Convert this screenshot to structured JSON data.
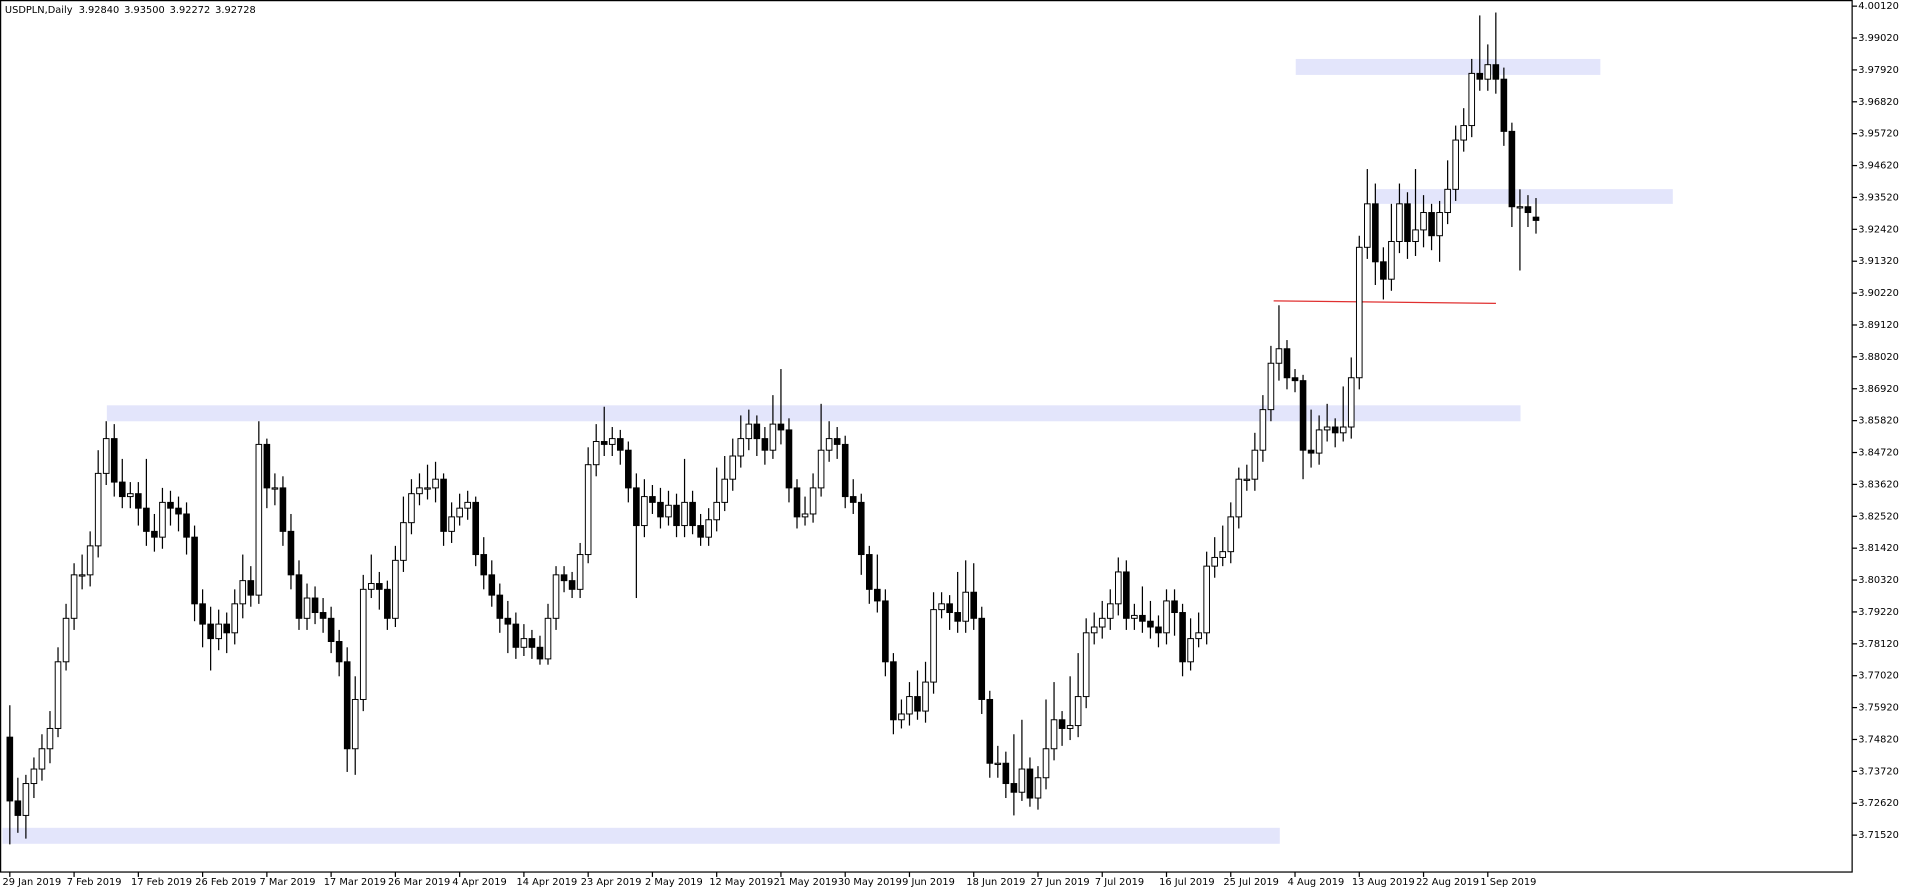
{
  "chart_data": {
    "type": "candlestick",
    "title": "USDPLN,Daily",
    "header_values": [
      "3.92840",
      "3.93500",
      "3.92272",
      "3.92728"
    ],
    "ylim": [
      3.70247,
      4.00332
    ],
    "yticks": [
      {
        "value": 4.0012,
        "label": "4.00120"
      },
      {
        "value": 3.9902,
        "label": "3.99020"
      },
      {
        "value": 3.9792,
        "label": "3.97920"
      },
      {
        "value": 3.9682,
        "label": "3.96820"
      },
      {
        "value": 3.9572,
        "label": "3.95720"
      },
      {
        "value": 3.9462,
        "label": "3.94620"
      },
      {
        "value": 3.9352,
        "label": "3.93520"
      },
      {
        "value": 3.9242,
        "label": "3.92420"
      },
      {
        "value": 3.9132,
        "label": "3.91320"
      },
      {
        "value": 3.9022,
        "label": "3.90220"
      },
      {
        "value": 3.8912,
        "label": "3.89120"
      },
      {
        "value": 3.8802,
        "label": "3.88020"
      },
      {
        "value": 3.8692,
        "label": "3.86920"
      },
      {
        "value": 3.8582,
        "label": "3.85820"
      },
      {
        "value": 3.8472,
        "label": "3.84720"
      },
      {
        "value": 3.8362,
        "label": "3.83620"
      },
      {
        "value": 3.8252,
        "label": "3.82520"
      },
      {
        "value": 3.8142,
        "label": "3.81420"
      },
      {
        "value": 3.8032,
        "label": "3.80320"
      },
      {
        "value": 3.7922,
        "label": "3.79220"
      },
      {
        "value": 3.7812,
        "label": "3.78120"
      },
      {
        "value": 3.7702,
        "label": "3.77020"
      },
      {
        "value": 3.7592,
        "label": "3.75920"
      },
      {
        "value": 3.7482,
        "label": "3.74820"
      },
      {
        "value": 3.7372,
        "label": "3.73720"
      },
      {
        "value": 3.7262,
        "label": "3.72620"
      },
      {
        "value": 3.7152,
        "label": "3.71520"
      }
    ],
    "categories": [
      "29 Jan 2019",
      null,
      null,
      null,
      null,
      null,
      null,
      null,
      "7 Feb 2019",
      null,
      null,
      null,
      null,
      null,
      null,
      null,
      "17 Feb 2019",
      null,
      null,
      null,
      null,
      null,
      null,
      null,
      "26 Feb 2019",
      null,
      null,
      null,
      null,
      null,
      null,
      null,
      "7 Mar 2019",
      null,
      null,
      null,
      null,
      null,
      null,
      null,
      "17 Mar 2019",
      null,
      null,
      null,
      null,
      null,
      null,
      null,
      "26 Mar 2019",
      null,
      null,
      null,
      null,
      null,
      null,
      null,
      "4 Apr 2019",
      null,
      null,
      null,
      null,
      null,
      null,
      null,
      "14 Apr 2019",
      null,
      null,
      null,
      null,
      null,
      null,
      null,
      "23 Apr 2019",
      null,
      null,
      null,
      null,
      null,
      null,
      null,
      "2 May 2019",
      null,
      null,
      null,
      null,
      null,
      null,
      null,
      "12 May 2019",
      null,
      null,
      null,
      null,
      null,
      null,
      null,
      "21 May 2019",
      null,
      null,
      null,
      null,
      null,
      null,
      null,
      "30 May 2019",
      null,
      null,
      null,
      null,
      null,
      null,
      null,
      "9 Jun 2019",
      null,
      null,
      null,
      null,
      null,
      null,
      null,
      "18 Jun 2019",
      null,
      null,
      null,
      null,
      null,
      null,
      null,
      "27 Jun 2019",
      null,
      null,
      null,
      null,
      null,
      null,
      null,
      "7 Jul 2019",
      null,
      null,
      null,
      null,
      null,
      null,
      null,
      "16 Jul 2019",
      null,
      null,
      null,
      null,
      null,
      null,
      null,
      "25 Jul 2019",
      null,
      null,
      null,
      null,
      null,
      null,
      null,
      "4 Aug 2019",
      null,
      null,
      null,
      null,
      null,
      null,
      null,
      "13 Aug 2019",
      null,
      null,
      null,
      null,
      null,
      null,
      null,
      "22 Aug 2019",
      null,
      null,
      null,
      null,
      null,
      null,
      null,
      "1 Sep 2019",
      null,
      null,
      null,
      null,
      null,
      null
    ],
    "ohlc": [
      [
        3.749,
        3.76,
        3.712,
        3.727
      ],
      [
        3.727,
        3.735,
        3.716,
        3.722
      ],
      [
        3.722,
        3.736,
        3.714,
        3.733
      ],
      [
        3.733,
        3.742,
        3.728,
        3.738
      ],
      [
        3.738,
        3.75,
        3.734,
        3.745
      ],
      [
        3.745,
        3.758,
        3.74,
        3.752
      ],
      [
        3.752,
        3.78,
        3.749,
        3.775
      ],
      [
        3.775,
        3.795,
        3.772,
        3.79
      ],
      [
        3.79,
        3.809,
        3.786,
        3.805
      ],
      [
        3.805,
        3.812,
        3.8,
        3.805
      ],
      [
        3.805,
        3.82,
        3.801,
        3.815
      ],
      [
        3.815,
        3.848,
        3.811,
        3.84
      ],
      [
        3.84,
        3.858,
        3.836,
        3.852
      ],
      [
        3.852,
        3.857,
        3.832,
        3.837
      ],
      [
        3.837,
        3.845,
        3.828,
        3.832
      ],
      [
        3.832,
        3.837,
        3.828,
        3.833
      ],
      [
        3.833,
        3.837,
        3.822,
        3.828
      ],
      [
        3.828,
        3.845,
        3.815,
        3.82
      ],
      [
        3.82,
        3.826,
        3.813,
        3.818
      ],
      [
        3.818,
        3.835,
        3.814,
        3.83
      ],
      [
        3.83,
        3.834,
        3.822,
        3.828
      ],
      [
        3.828,
        3.832,
        3.82,
        3.826
      ],
      [
        3.826,
        3.83,
        3.812,
        3.818
      ],
      [
        3.818,
        3.822,
        3.789,
        3.795
      ],
      [
        3.795,
        3.8,
        3.78,
        3.788
      ],
      [
        3.788,
        3.794,
        3.772,
        3.783
      ],
      [
        3.783,
        3.793,
        3.779,
        3.788
      ],
      [
        3.788,
        3.792,
        3.778,
        3.785
      ],
      [
        3.785,
        3.8,
        3.781,
        3.795
      ],
      [
        3.795,
        3.812,
        3.79,
        3.803
      ],
      [
        3.803,
        3.808,
        3.794,
        3.798
      ],
      [
        3.798,
        3.858,
        3.795,
        3.85
      ],
      [
        3.85,
        3.852,
        3.828,
        3.835
      ],
      [
        3.835,
        3.84,
        3.829,
        3.835
      ],
      [
        3.835,
        3.839,
        3.815,
        3.82
      ],
      [
        3.82,
        3.826,
        3.8,
        3.805
      ],
      [
        3.805,
        3.81,
        3.786,
        3.79
      ],
      [
        3.79,
        3.802,
        3.786,
        3.797
      ],
      [
        3.797,
        3.801,
        3.788,
        3.792
      ],
      [
        3.792,
        3.797,
        3.785,
        3.79
      ],
      [
        3.79,
        3.794,
        3.778,
        3.782
      ],
      [
        3.782,
        3.786,
        3.77,
        3.775
      ],
      [
        3.775,
        3.78,
        3.737,
        3.745
      ],
      [
        3.745,
        3.77,
        3.736,
        3.762
      ],
      [
        3.762,
        3.805,
        3.758,
        3.8
      ],
      [
        3.8,
        3.812,
        3.797,
        3.802
      ],
      [
        3.802,
        3.806,
        3.793,
        3.8
      ],
      [
        3.8,
        3.803,
        3.786,
        3.79
      ],
      [
        3.79,
        3.815,
        3.787,
        3.81
      ],
      [
        3.81,
        3.832,
        3.806,
        3.823
      ],
      [
        3.823,
        3.838,
        3.819,
        3.833
      ],
      [
        3.833,
        3.84,
        3.829,
        3.835
      ],
      [
        3.835,
        3.843,
        3.831,
        3.835
      ],
      [
        3.835,
        3.844,
        3.83,
        3.838
      ],
      [
        3.838,
        3.84,
        3.815,
        3.82
      ],
      [
        3.82,
        3.83,
        3.816,
        3.825
      ],
      [
        3.825,
        3.833,
        3.822,
        3.828
      ],
      [
        3.828,
        3.834,
        3.824,
        3.83
      ],
      [
        3.83,
        3.832,
        3.808,
        3.812
      ],
      [
        3.812,
        3.818,
        3.8,
        3.805
      ],
      [
        3.805,
        3.81,
        3.794,
        3.798
      ],
      [
        3.798,
        3.802,
        3.785,
        3.79
      ],
      [
        3.79,
        3.796,
        3.778,
        3.788
      ],
      [
        3.788,
        3.792,
        3.776,
        3.78
      ],
      [
        3.78,
        3.788,
        3.777,
        3.783
      ],
      [
        3.783,
        3.786,
        3.776,
        3.78
      ],
      [
        3.78,
        3.784,
        3.774,
        3.776
      ],
      [
        3.776,
        3.795,
        3.774,
        3.79
      ],
      [
        3.79,
        3.808,
        3.786,
        3.805
      ],
      [
        3.805,
        3.808,
        3.799,
        3.803
      ],
      [
        3.803,
        3.806,
        3.797,
        3.8
      ],
      [
        3.8,
        3.816,
        3.797,
        3.812
      ],
      [
        3.812,
        3.849,
        3.809,
        3.843
      ],
      [
        3.843,
        3.857,
        3.839,
        3.851
      ],
      [
        3.851,
        3.863,
        3.846,
        3.85
      ],
      [
        3.85,
        3.856,
        3.846,
        3.852
      ],
      [
        3.852,
        3.855,
        3.843,
        3.848
      ],
      [
        3.848,
        3.851,
        3.83,
        3.835
      ],
      [
        3.835,
        3.84,
        3.797,
        3.822
      ],
      [
        3.822,
        3.838,
        3.818,
        3.832
      ],
      [
        3.832,
        3.836,
        3.826,
        3.83
      ],
      [
        3.83,
        3.835,
        3.821,
        3.825
      ],
      [
        3.825,
        3.834,
        3.822,
        3.829
      ],
      [
        3.829,
        3.833,
        3.818,
        3.822
      ],
      [
        3.822,
        3.845,
        3.818,
        3.83
      ],
      [
        3.83,
        3.834,
        3.819,
        3.822
      ],
      [
        3.822,
        3.826,
        3.815,
        3.818
      ],
      [
        3.818,
        3.828,
        3.815,
        3.824
      ],
      [
        3.824,
        3.842,
        3.82,
        3.83
      ],
      [
        3.83,
        3.846,
        3.827,
        3.838
      ],
      [
        3.838,
        3.852,
        3.834,
        3.846
      ],
      [
        3.846,
        3.86,
        3.842,
        3.852
      ],
      [
        3.852,
        3.862,
        3.848,
        3.857
      ],
      [
        3.857,
        3.86,
        3.846,
        3.852
      ],
      [
        3.852,
        3.856,
        3.843,
        3.848
      ],
      [
        3.848,
        3.867,
        3.845,
        3.857
      ],
      [
        3.857,
        3.876,
        3.85,
        3.855
      ],
      [
        3.855,
        3.859,
        3.83,
        3.835
      ],
      [
        3.835,
        3.838,
        3.821,
        3.825
      ],
      [
        3.825,
        3.832,
        3.822,
        3.826
      ],
      [
        3.826,
        3.84,
        3.823,
        3.835
      ],
      [
        3.835,
        3.864,
        3.832,
        3.848
      ],
      [
        3.848,
        3.858,
        3.844,
        3.852
      ],
      [
        3.852,
        3.856,
        3.845,
        3.85
      ],
      [
        3.85,
        3.853,
        3.828,
        3.832
      ],
      [
        3.832,
        3.838,
        3.826,
        3.83
      ],
      [
        3.83,
        3.833,
        3.805,
        3.812
      ],
      [
        3.812,
        3.815,
        3.795,
        3.8
      ],
      [
        3.8,
        3.812,
        3.792,
        3.796
      ],
      [
        3.796,
        3.8,
        3.77,
        3.775
      ],
      [
        3.775,
        3.778,
        3.75,
        3.755
      ],
      [
        3.755,
        3.762,
        3.752,
        3.757
      ],
      [
        3.757,
        3.768,
        3.753,
        3.763
      ],
      [
        3.763,
        3.772,
        3.755,
        3.758
      ],
      [
        3.758,
        3.775,
        3.754,
        3.768
      ],
      [
        3.768,
        3.799,
        3.764,
        3.793
      ],
      [
        3.793,
        3.799,
        3.79,
        3.795
      ],
      [
        3.795,
        3.798,
        3.786,
        3.792
      ],
      [
        3.792,
        3.806,
        3.785,
        3.789
      ],
      [
        3.789,
        3.81,
        3.785,
        3.799
      ],
      [
        3.799,
        3.809,
        3.786,
        3.79
      ],
      [
        3.79,
        3.794,
        3.757,
        3.762
      ],
      [
        3.762,
        3.765,
        3.735,
        3.74
      ],
      [
        3.74,
        3.746,
        3.735,
        3.74
      ],
      [
        3.74,
        3.744,
        3.728,
        3.733
      ],
      [
        3.733,
        3.75,
        3.722,
        3.73
      ],
      [
        3.73,
        3.755,
        3.727,
        3.738
      ],
      [
        3.738,
        3.742,
        3.725,
        3.728
      ],
      [
        3.728,
        3.739,
        3.724,
        3.735
      ],
      [
        3.735,
        3.762,
        3.731,
        3.745
      ],
      [
        3.745,
        3.768,
        3.741,
        3.755
      ],
      [
        3.755,
        3.758,
        3.746,
        3.752
      ],
      [
        3.752,
        3.77,
        3.748,
        3.753
      ],
      [
        3.753,
        3.778,
        3.749,
        3.763
      ],
      [
        3.763,
        3.79,
        3.759,
        3.785
      ],
      [
        3.785,
        3.792,
        3.781,
        3.787
      ],
      [
        3.787,
        3.796,
        3.783,
        3.79
      ],
      [
        3.79,
        3.8,
        3.786,
        3.795
      ],
      [
        3.795,
        3.811,
        3.791,
        3.806
      ],
      [
        3.806,
        3.81,
        3.786,
        3.79
      ],
      [
        3.79,
        3.795,
        3.786,
        3.791
      ],
      [
        3.791,
        3.801,
        3.785,
        3.789
      ],
      [
        3.789,
        3.796,
        3.783,
        3.787
      ],
      [
        3.787,
        3.791,
        3.78,
        3.785
      ],
      [
        3.785,
        3.8,
        3.781,
        3.796
      ],
      [
        3.796,
        3.8,
        3.784,
        3.792
      ],
      [
        3.792,
        3.795,
        3.77,
        3.775
      ],
      [
        3.775,
        3.79,
        3.772,
        3.783
      ],
      [
        3.783,
        3.792,
        3.78,
        3.785
      ],
      [
        3.785,
        3.813,
        3.781,
        3.808
      ],
      [
        3.808,
        3.818,
        3.804,
        3.811
      ],
      [
        3.811,
        3.822,
        3.808,
        3.813
      ],
      [
        3.813,
        3.83,
        3.809,
        3.825
      ],
      [
        3.825,
        3.842,
        3.821,
        3.838
      ],
      [
        3.838,
        3.843,
        3.834,
        3.838
      ],
      [
        3.838,
        3.854,
        3.834,
        3.848
      ],
      [
        3.848,
        3.867,
        3.844,
        3.862
      ],
      [
        3.862,
        3.884,
        3.858,
        3.878
      ],
      [
        3.878,
        3.898,
        3.872,
        3.883
      ],
      [
        3.883,
        3.886,
        3.869,
        3.873
      ],
      [
        3.873,
        3.876,
        3.868,
        3.872
      ],
      [
        3.872,
        3.874,
        3.838,
        3.848
      ],
      [
        3.848,
        3.862,
        3.842,
        3.847
      ],
      [
        3.847,
        3.86,
        3.843,
        3.855
      ],
      [
        3.855,
        3.864,
        3.851,
        3.856
      ],
      [
        3.856,
        3.859,
        3.849,
        3.854
      ],
      [
        3.854,
        3.87,
        3.851,
        3.856
      ],
      [
        3.856,
        3.88,
        3.852,
        3.873
      ],
      [
        3.873,
        3.922,
        3.869,
        3.918
      ],
      [
        3.918,
        3.945,
        3.914,
        3.933
      ],
      [
        3.933,
        3.94,
        3.905,
        3.913
      ],
      [
        3.913,
        3.918,
        3.9,
        3.907
      ],
      [
        3.907,
        3.933,
        3.903,
        3.92
      ],
      [
        3.92,
        3.94,
        3.916,
        3.933
      ],
      [
        3.933,
        3.937,
        3.914,
        3.92
      ],
      [
        3.92,
        3.945,
        3.915,
        3.924
      ],
      [
        3.924,
        3.936,
        3.918,
        3.93
      ],
      [
        3.93,
        3.933,
        3.917,
        3.922
      ],
      [
        3.922,
        3.934,
        3.913,
        3.93
      ],
      [
        3.93,
        3.948,
        3.926,
        3.938
      ],
      [
        3.938,
        3.96,
        3.934,
        3.955
      ],
      [
        3.955,
        3.966,
        3.951,
        3.96
      ],
      [
        3.96,
        3.983,
        3.956,
        3.978
      ],
      [
        3.978,
        3.998,
        3.972,
        3.976
      ],
      [
        3.976,
        3.988,
        3.972,
        3.981
      ],
      [
        3.981,
        3.999,
        3.971,
        3.976
      ],
      [
        3.976,
        3.98,
        3.953,
        3.958
      ],
      [
        3.958,
        3.961,
        3.925,
        3.932
      ],
      [
        3.932,
        3.938,
        3.91,
        3.932
      ],
      [
        3.932,
        3.936,
        3.925,
        3.93
      ],
      [
        3.9284,
        3.935,
        3.92272,
        3.92728
      ]
    ],
    "up_color": "#ffffff",
    "down_color": "#000000",
    "wick_color": "#000000"
  }
}
